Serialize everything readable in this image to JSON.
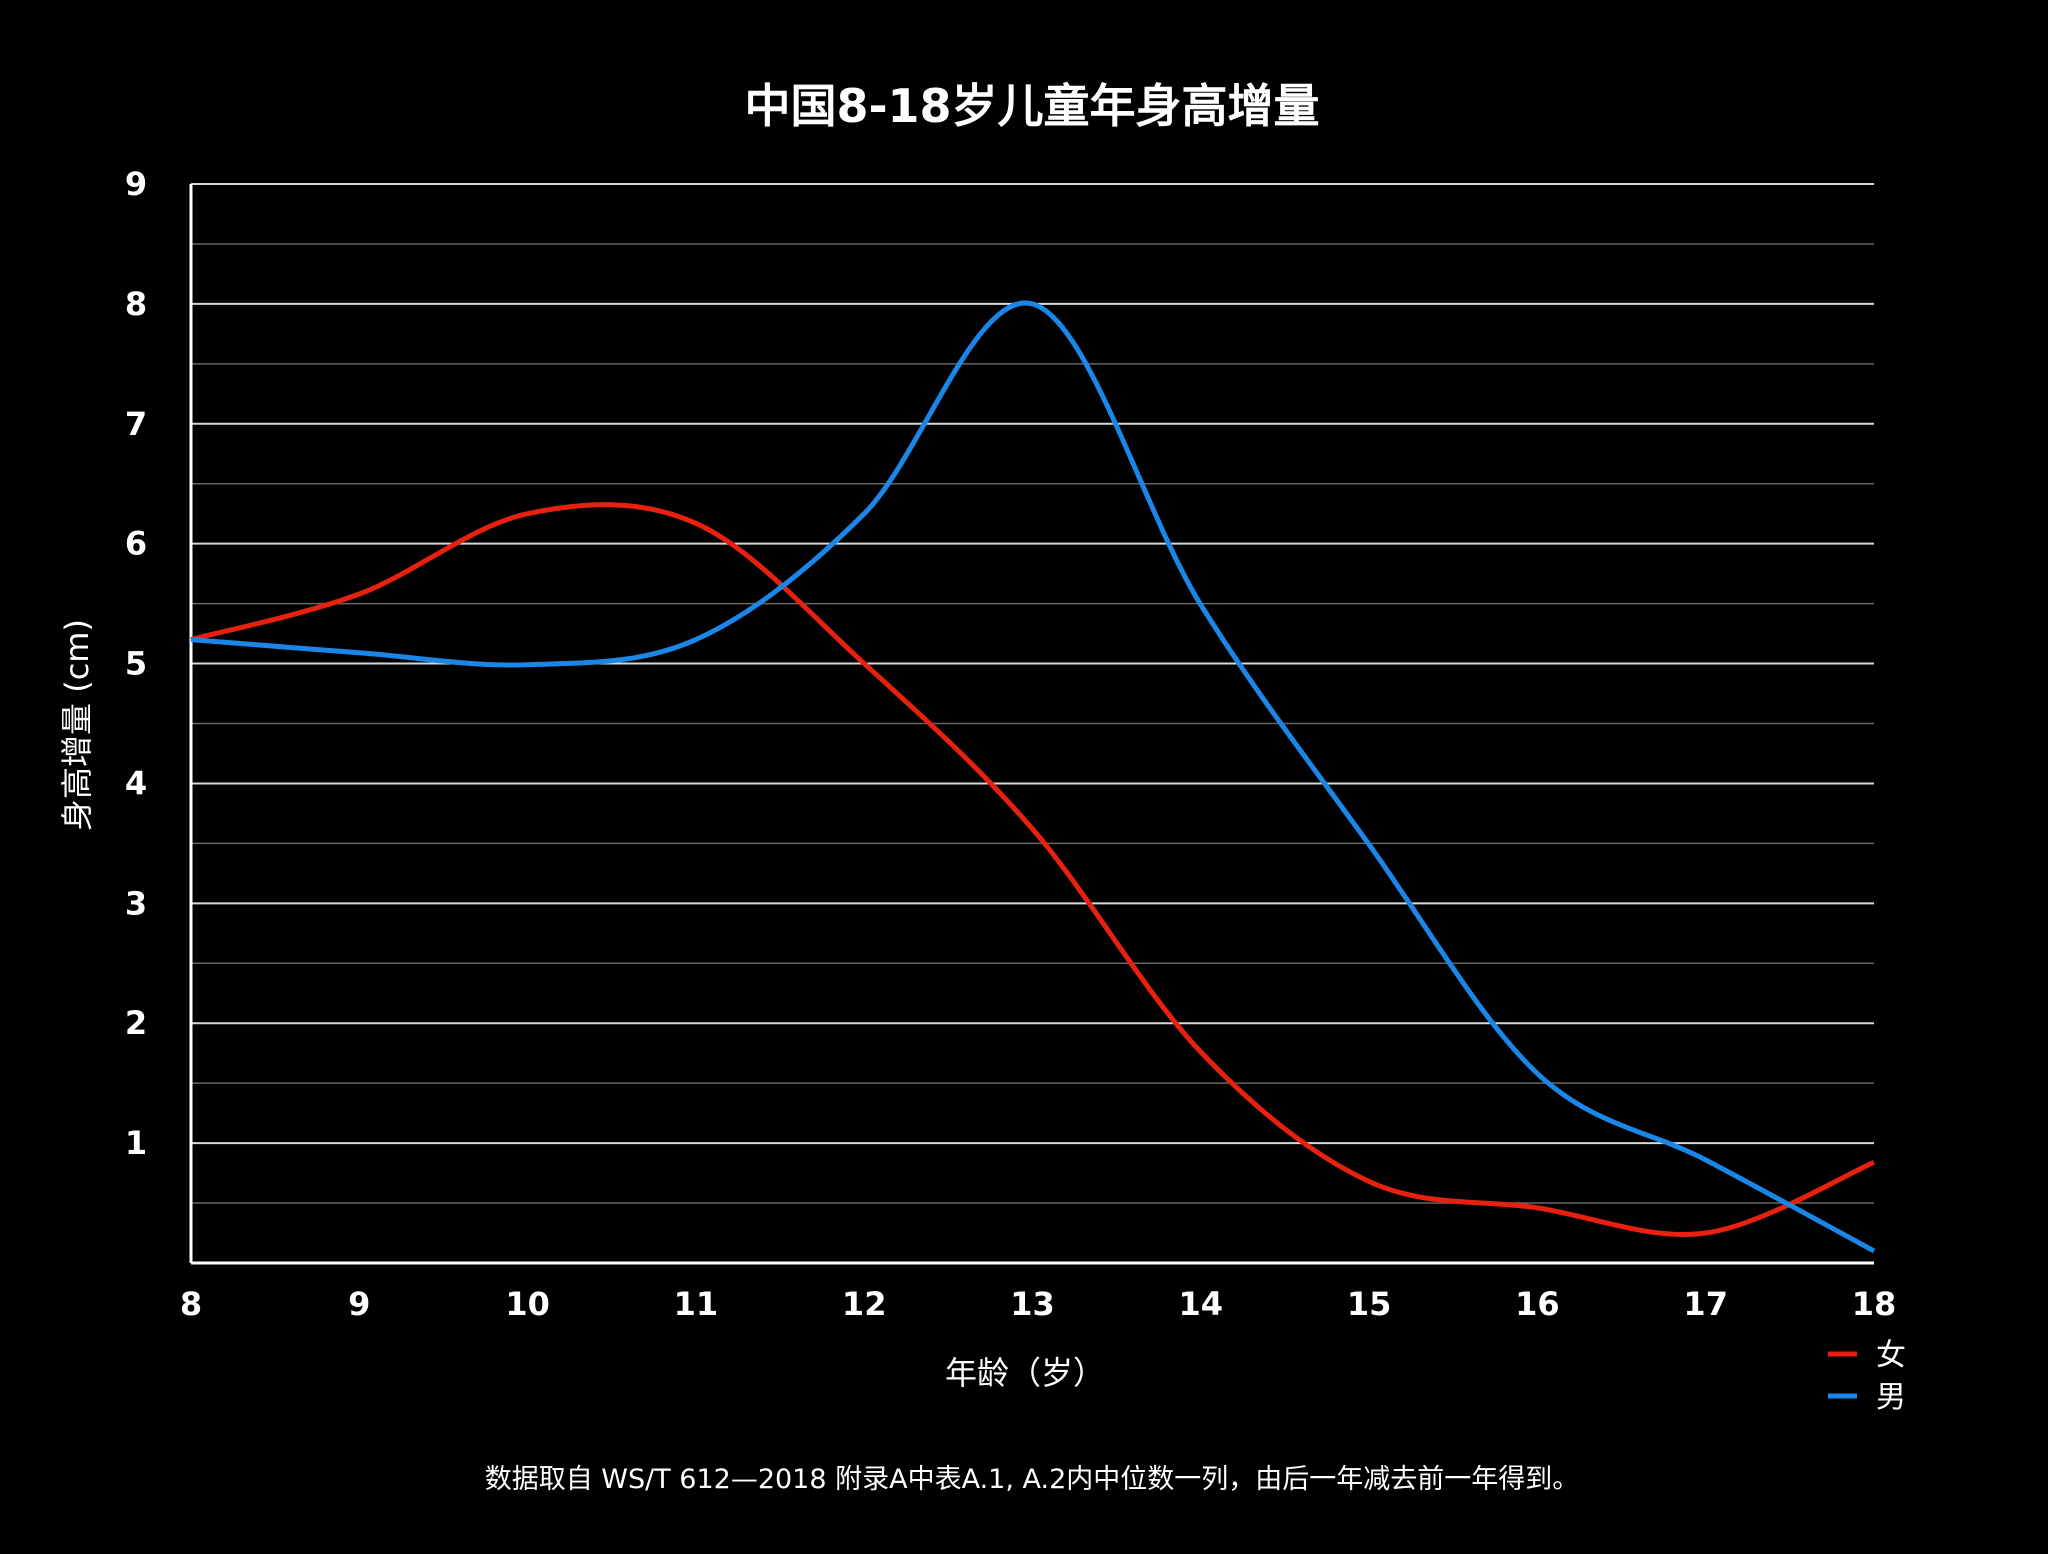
{
  "chart_data": {
    "type": "line",
    "title": "中国8-18岁儿童年身高增量",
    "xlabel": "年龄（岁）",
    "ylabel": "身高增量 (cm)",
    "x": [
      8,
      9,
      10,
      11,
      12,
      13,
      14,
      15,
      16,
      17,
      18
    ],
    "xlim": [
      8,
      18
    ],
    "ylim": [
      0,
      9
    ],
    "yticks": [
      1,
      2,
      3,
      4,
      5,
      6,
      7,
      8,
      9
    ],
    "grid": true,
    "legend_position": "bottom-right",
    "series": [
      {
        "name": "女",
        "color": "#e8200f",
        "values": [
          5.2,
          5.58,
          6.25,
          6.17,
          5.0,
          3.62,
          1.76,
          0.68,
          0.46,
          0.25,
          0.84
        ]
      },
      {
        "name": "男",
        "color": "#1a86e8",
        "values": [
          5.2,
          5.09,
          4.99,
          5.2,
          6.25,
          8.0,
          5.49,
          3.49,
          1.58,
          0.86,
          0.1
        ]
      }
    ],
    "footnote": "数据取自 WS/T 612—2018 附录A中表A.1, A.2内中位数一列，由后一年减去前一年得到。"
  }
}
